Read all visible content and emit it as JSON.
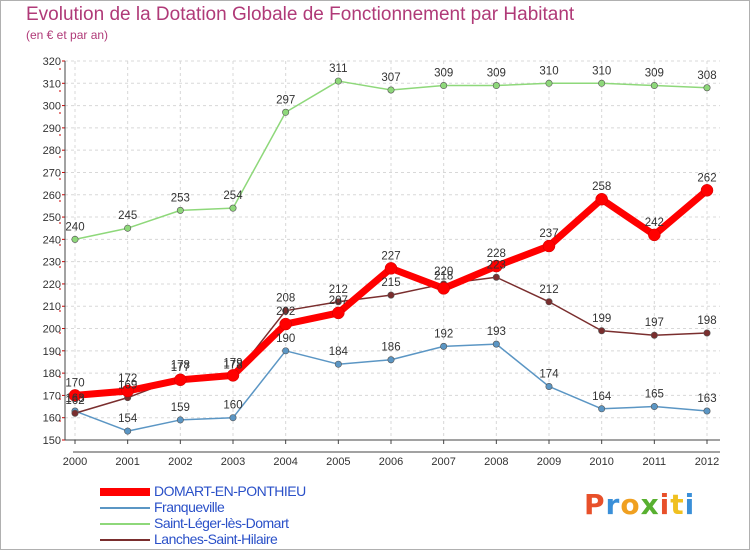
{
  "title": "Evolution de la Dotation Globale de Fonctionnement par Habitant",
  "subtitle": "(en € et par an)",
  "brand": "Proxiti",
  "brand_colors": [
    "#e8502a",
    "#3a8fd8",
    "#f0a020",
    "#58b030",
    "#e8502a",
    "#f0c020",
    "#3a8fd8"
  ],
  "chart_data": {
    "type": "line",
    "title": "Evolution de la Dotation Globale de Fonctionnement par Habitant",
    "subtitle": "(en € et par an)",
    "xlabel": "",
    "ylabel": "",
    "x": [
      "2000",
      "2001",
      "2002",
      "2003",
      "2004",
      "2005",
      "2006",
      "2007",
      "2008",
      "2009",
      "2010",
      "2011",
      "2012"
    ],
    "ylim": [
      150,
      320
    ],
    "yticks": [
      150,
      160,
      170,
      180,
      190,
      200,
      210,
      220,
      230,
      240,
      250,
      260,
      270,
      280,
      290,
      300,
      310,
      320
    ],
    "grid": true,
    "legend_position": "bottom-left",
    "series": [
      {
        "name": "DOMART-EN-PONTHIEU",
        "color": "#ff0000",
        "values": [
          170,
          172,
          177,
          179,
          202,
          207,
          227,
          218,
          228,
          237,
          258,
          242,
          262
        ]
      },
      {
        "name": "Franqueville",
        "color": "#5b96c4",
        "values": [
          163,
          154,
          159,
          160,
          190,
          184,
          186,
          192,
          193,
          174,
          164,
          165,
          163
        ]
      },
      {
        "name": "Saint-Léger-lès-Domart",
        "color": "#8ed87a",
        "values": [
          240,
          245,
          253,
          254,
          297,
          311,
          307,
          309,
          309,
          310,
          310,
          309,
          308
        ]
      },
      {
        "name": "Lanches-Saint-Hilaire",
        "color": "#7a2e2e",
        "values": [
          162,
          169,
          178,
          178,
          208,
          212,
          215,
          220,
          223,
          212,
          199,
          197,
          198
        ]
      }
    ]
  }
}
